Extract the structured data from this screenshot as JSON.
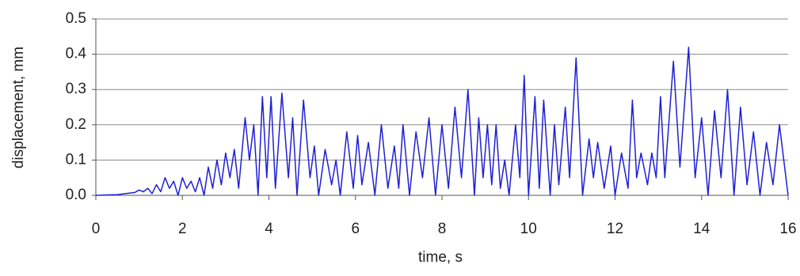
{
  "chart_data": {
    "type": "line",
    "xlabel": "time, s",
    "ylabel": "displacement, mm",
    "color": "#1f1fd6",
    "x": [
      0,
      0.5,
      0.9,
      1.0,
      1.1,
      1.2,
      1.3,
      1.4,
      1.5,
      1.6,
      1.7,
      1.8,
      1.9,
      2.0,
      2.1,
      2.2,
      2.3,
      2.4,
      2.5,
      2.6,
      2.7,
      2.8,
      2.9,
      3.0,
      3.1,
      3.2,
      3.3,
      3.45,
      3.55,
      3.65,
      3.75,
      3.85,
      3.95,
      4.05,
      4.15,
      4.3,
      4.45,
      4.55,
      4.65,
      4.8,
      4.95,
      5.05,
      5.15,
      5.3,
      5.45,
      5.55,
      5.65,
      5.8,
      5.95,
      6.05,
      6.15,
      6.3,
      6.45,
      6.6,
      6.75,
      6.9,
      7.0,
      7.1,
      7.25,
      7.4,
      7.55,
      7.7,
      7.85,
      8.0,
      8.15,
      8.3,
      8.45,
      8.6,
      8.75,
      8.85,
      8.95,
      9.05,
      9.15,
      9.25,
      9.35,
      9.45,
      9.55,
      9.7,
      9.8,
      9.9,
      10.0,
      10.15,
      10.25,
      10.35,
      10.5,
      10.6,
      10.7,
      10.85,
      10.95,
      11.1,
      11.25,
      11.4,
      11.5,
      11.6,
      11.75,
      11.9,
      12.0,
      12.15,
      12.3,
      12.4,
      12.5,
      12.6,
      12.75,
      12.85,
      12.95,
      13.05,
      13.15,
      13.35,
      13.5,
      13.7,
      13.85,
      14.0,
      14.15,
      14.3,
      14.45,
      14.6,
      14.75,
      14.9,
      15.05,
      15.2,
      15.35,
      15.5,
      15.65,
      15.8,
      15.9,
      16.0
    ],
    "values": [
      0,
      0.002,
      0.008,
      0.015,
      0.01,
      0.02,
      0.005,
      0.03,
      0.01,
      0.05,
      0.02,
      0.04,
      0.0,
      0.05,
      0.02,
      0.04,
      0.01,
      0.05,
      0.0,
      0.08,
      0.02,
      0.1,
      0.03,
      0.12,
      0.05,
      0.13,
      0.02,
      0.22,
      0.1,
      0.2,
      0.0,
      0.28,
      0.05,
      0.28,
      0.02,
      0.29,
      0.05,
      0.22,
      0.0,
      0.27,
      0.05,
      0.14,
      0.0,
      0.13,
      0.03,
      0.1,
      0.0,
      0.18,
      0.02,
      0.17,
      0.03,
      0.15,
      0.0,
      0.2,
      0.02,
      0.14,
      0.02,
      0.2,
      0.0,
      0.18,
      0.05,
      0.22,
      0.0,
      0.2,
      0.02,
      0.25,
      0.05,
      0.3,
      0.0,
      0.22,
      0.05,
      0.2,
      0.03,
      0.2,
      0.02,
      0.1,
      0.0,
      0.2,
      0.05,
      0.34,
      0.0,
      0.28,
      0.02,
      0.27,
      0.0,
      0.2,
      0.03,
      0.25,
      0.05,
      0.39,
      0.0,
      0.16,
      0.05,
      0.15,
      0.02,
      0.14,
      0.0,
      0.12,
      0.02,
      0.27,
      0.05,
      0.12,
      0.03,
      0.12,
      0.05,
      0.28,
      0.05,
      0.38,
      0.08,
      0.42,
      0.05,
      0.22,
      0.0,
      0.24,
      0.05,
      0.3,
      0.0,
      0.25,
      0.03,
      0.18,
      0.0,
      0.15,
      0.03,
      0.2,
      0.1,
      0.0
    ],
    "xlim": [
      0,
      16
    ],
    "xticks": [
      0,
      2,
      4,
      6,
      8,
      10,
      12,
      14,
      16
    ],
    "ylim": [
      0,
      0.5
    ],
    "yticks": [
      {
        "value": 0,
        "label": "0.0"
      },
      0.1,
      0.2,
      0.3,
      0.4,
      0.5
    ],
    "grid": true
  }
}
